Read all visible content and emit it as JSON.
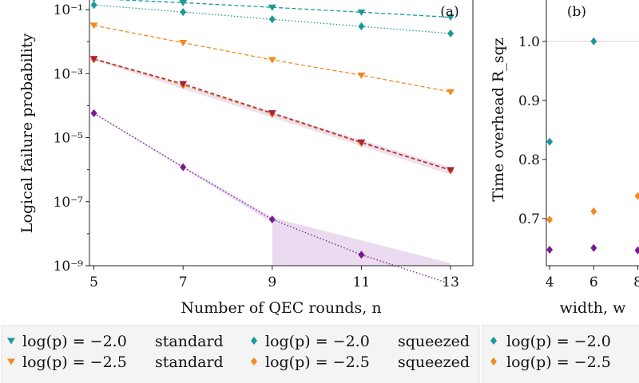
{
  "colors": {
    "teal": "#1a9a96",
    "orange": "#f08a24",
    "crimson": "#a8203c",
    "purple": "#7a1a8e",
    "band": "#dcc3e6",
    "guide": "#f0c7cf"
  },
  "chart_data": [
    {
      "type": "line",
      "panel_letter": "(a)",
      "xlabel": "Number of QEC rounds, n",
      "ylabel": "Logical failure probability",
      "yscale": "log",
      "xlim": [
        4.9,
        13.5
      ],
      "ylim": [
        1e-09,
        0.2
      ],
      "xticks": [
        5,
        7,
        9,
        11,
        13
      ],
      "yticks": [
        {
          "value": 0.1,
          "label": "10⁻¹"
        },
        {
          "value": 0.001,
          "label": "10⁻³"
        },
        {
          "value": 1e-05,
          "label": "10⁻⁵"
        },
        {
          "value": 1e-07,
          "label": "10⁻⁷"
        },
        {
          "value": 1e-09,
          "label": "10⁻⁹"
        }
      ],
      "series": [
        {
          "name": "log(p) = −2.0 standard",
          "color": "teal",
          "marker": "triangle-down",
          "line": "dashed",
          "x": [
            5,
            7,
            9,
            11,
            13
          ],
          "y": [
            0.22,
            0.165,
            0.118,
            0.083,
            0.058
          ]
        },
        {
          "name": "log(p) = −2.0 squeezed",
          "color": "teal",
          "marker": "diamond",
          "line": "dotted",
          "x": [
            5,
            7,
            9,
            11,
            13
          ],
          "y": [
            0.14,
            0.084,
            0.05,
            0.03,
            0.018
          ]
        },
        {
          "name": "log(p) = −2.5 standard",
          "color": "orange",
          "marker": "triangle-down",
          "line": "dashed",
          "x": [
            5,
            7,
            9,
            11,
            13
          ],
          "y": [
            0.032,
            0.0093,
            0.0027,
            0.00089,
            0.00027
          ]
        },
        {
          "name": "log(p) = −2.5 squeezed",
          "color": "orange",
          "marker": "diamond",
          "line": "dashed",
          "x": [
            5,
            7,
            9,
            11,
            13
          ],
          "y": [
            0.0028,
            0.00044,
            5.5e-05,
            6.8e-06,
            9.5e-07
          ]
        },
        {
          "name": "",
          "color": "crimson",
          "marker": "triangle-down",
          "line": "dashed",
          "x": [
            5,
            7,
            9,
            11,
            13
          ],
          "y": [
            0.0029,
            0.00048,
            5.9e-05,
            7.2e-06,
            9.8e-07
          ]
        },
        {
          "name": "",
          "color": "purple",
          "marker": "diamond",
          "line": "dotted",
          "x": [
            5,
            7,
            9,
            11,
            12.9
          ],
          "y": [
            5.8e-05,
            1.2e-06,
            2.8e-08,
            2.2e-09,
            3e-10
          ],
          "marker_x": [
            5,
            7,
            9,
            11
          ]
        }
      ],
      "bands": [
        {
          "color": "band",
          "upper": [
            [
              7,
              1.4e-06
            ],
            [
              9,
              3e-08
            ],
            [
              9,
              3e-08
            ]
          ],
          "lower": [
            [
              7,
              1.1e-06
            ],
            [
              9,
              1.5e-09
            ]
          ]
        }
      ]
    },
    {
      "type": "scatter",
      "panel_letter": "(b)",
      "xlabel": "width, w",
      "ylabel": "Time overhead R_sqz",
      "xlim": [
        3.85,
        8.2
      ],
      "ylim": [
        0.62,
        1.07
      ],
      "xticks": [
        4,
        6,
        8
      ],
      "yticks": [
        0.7,
        0.8,
        0.9,
        1.0
      ],
      "reference_line": 1.0,
      "series": [
        {
          "name": "log(p) = −2.0",
          "color": "teal",
          "marker": "diamond",
          "x": [
            4,
            6
          ],
          "y": [
            0.83,
            1.0
          ]
        },
        {
          "name": "log(p) = −2.5",
          "color": "orange",
          "marker": "diamond",
          "x": [
            4,
            6,
            8
          ],
          "y": [
            0.698,
            0.712,
            0.738
          ]
        },
        {
          "name": "",
          "color": "purple",
          "marker": "diamond",
          "x": [
            4,
            6,
            8
          ],
          "y": [
            0.647,
            0.65,
            0.646
          ]
        }
      ]
    }
  ],
  "legend": {
    "a": [
      {
        "color": "teal",
        "marker": "triangle-down",
        "expr": "log(p) = −2.0",
        "kind": "standard"
      },
      {
        "color": "teal",
        "marker": "diamond",
        "expr": "log(p) = −2.0",
        "kind": "squeezed"
      },
      {
        "color": "orange",
        "marker": "triangle-down",
        "expr": "log(p) = −2.5",
        "kind": "standard"
      },
      {
        "color": "orange",
        "marker": "diamond",
        "expr": "log(p) = −2.5",
        "kind": "squeezed"
      }
    ],
    "b": [
      {
        "color": "teal",
        "marker": "diamond",
        "expr": "log(p) = −2.0"
      },
      {
        "color": "orange",
        "marker": "diamond",
        "expr": "log(p) = −2.5"
      }
    ]
  }
}
